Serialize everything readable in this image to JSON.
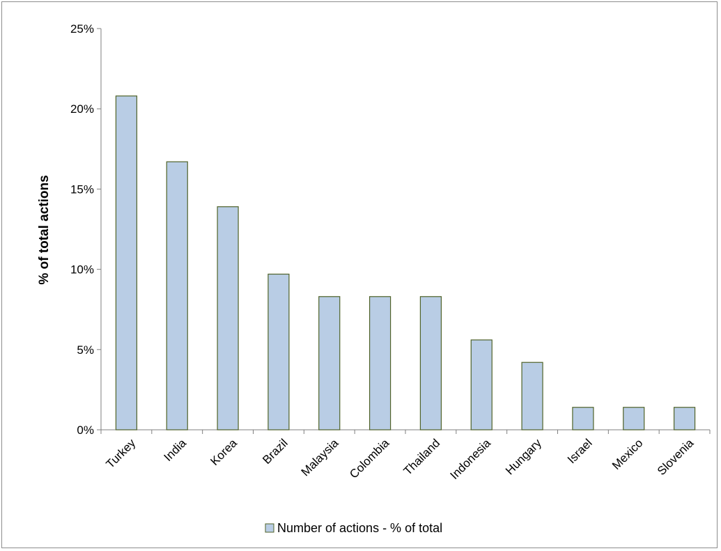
{
  "chart_data": {
    "type": "bar",
    "title": "",
    "xlabel": "",
    "ylabel": "% of total actions",
    "ylim": [
      0,
      25
    ],
    "yticks": [
      0,
      5,
      10,
      15,
      20,
      25
    ],
    "ytick_labels": [
      "0%",
      "5%",
      "10%",
      "15%",
      "20%",
      "25%"
    ],
    "categories": [
      "Turkey",
      "India",
      "Korea",
      "Brazil",
      "Malaysia",
      "Colombia",
      "Thailand",
      "Indonesia",
      "Hungary",
      "Israel",
      "Mexico",
      "Slovenia"
    ],
    "series": [
      {
        "name": "Number of actions - % of total",
        "values": [
          20.8,
          16.7,
          13.9,
          9.7,
          8.3,
          8.3,
          8.3,
          5.6,
          4.2,
          1.4,
          1.4,
          1.4
        ]
      }
    ],
    "grid": false,
    "legend_position": "bottom",
    "colors": {
      "bar_fill": "#b9cde5",
      "bar_stroke": "#4f6228",
      "axis": "#7f7f7f"
    }
  }
}
